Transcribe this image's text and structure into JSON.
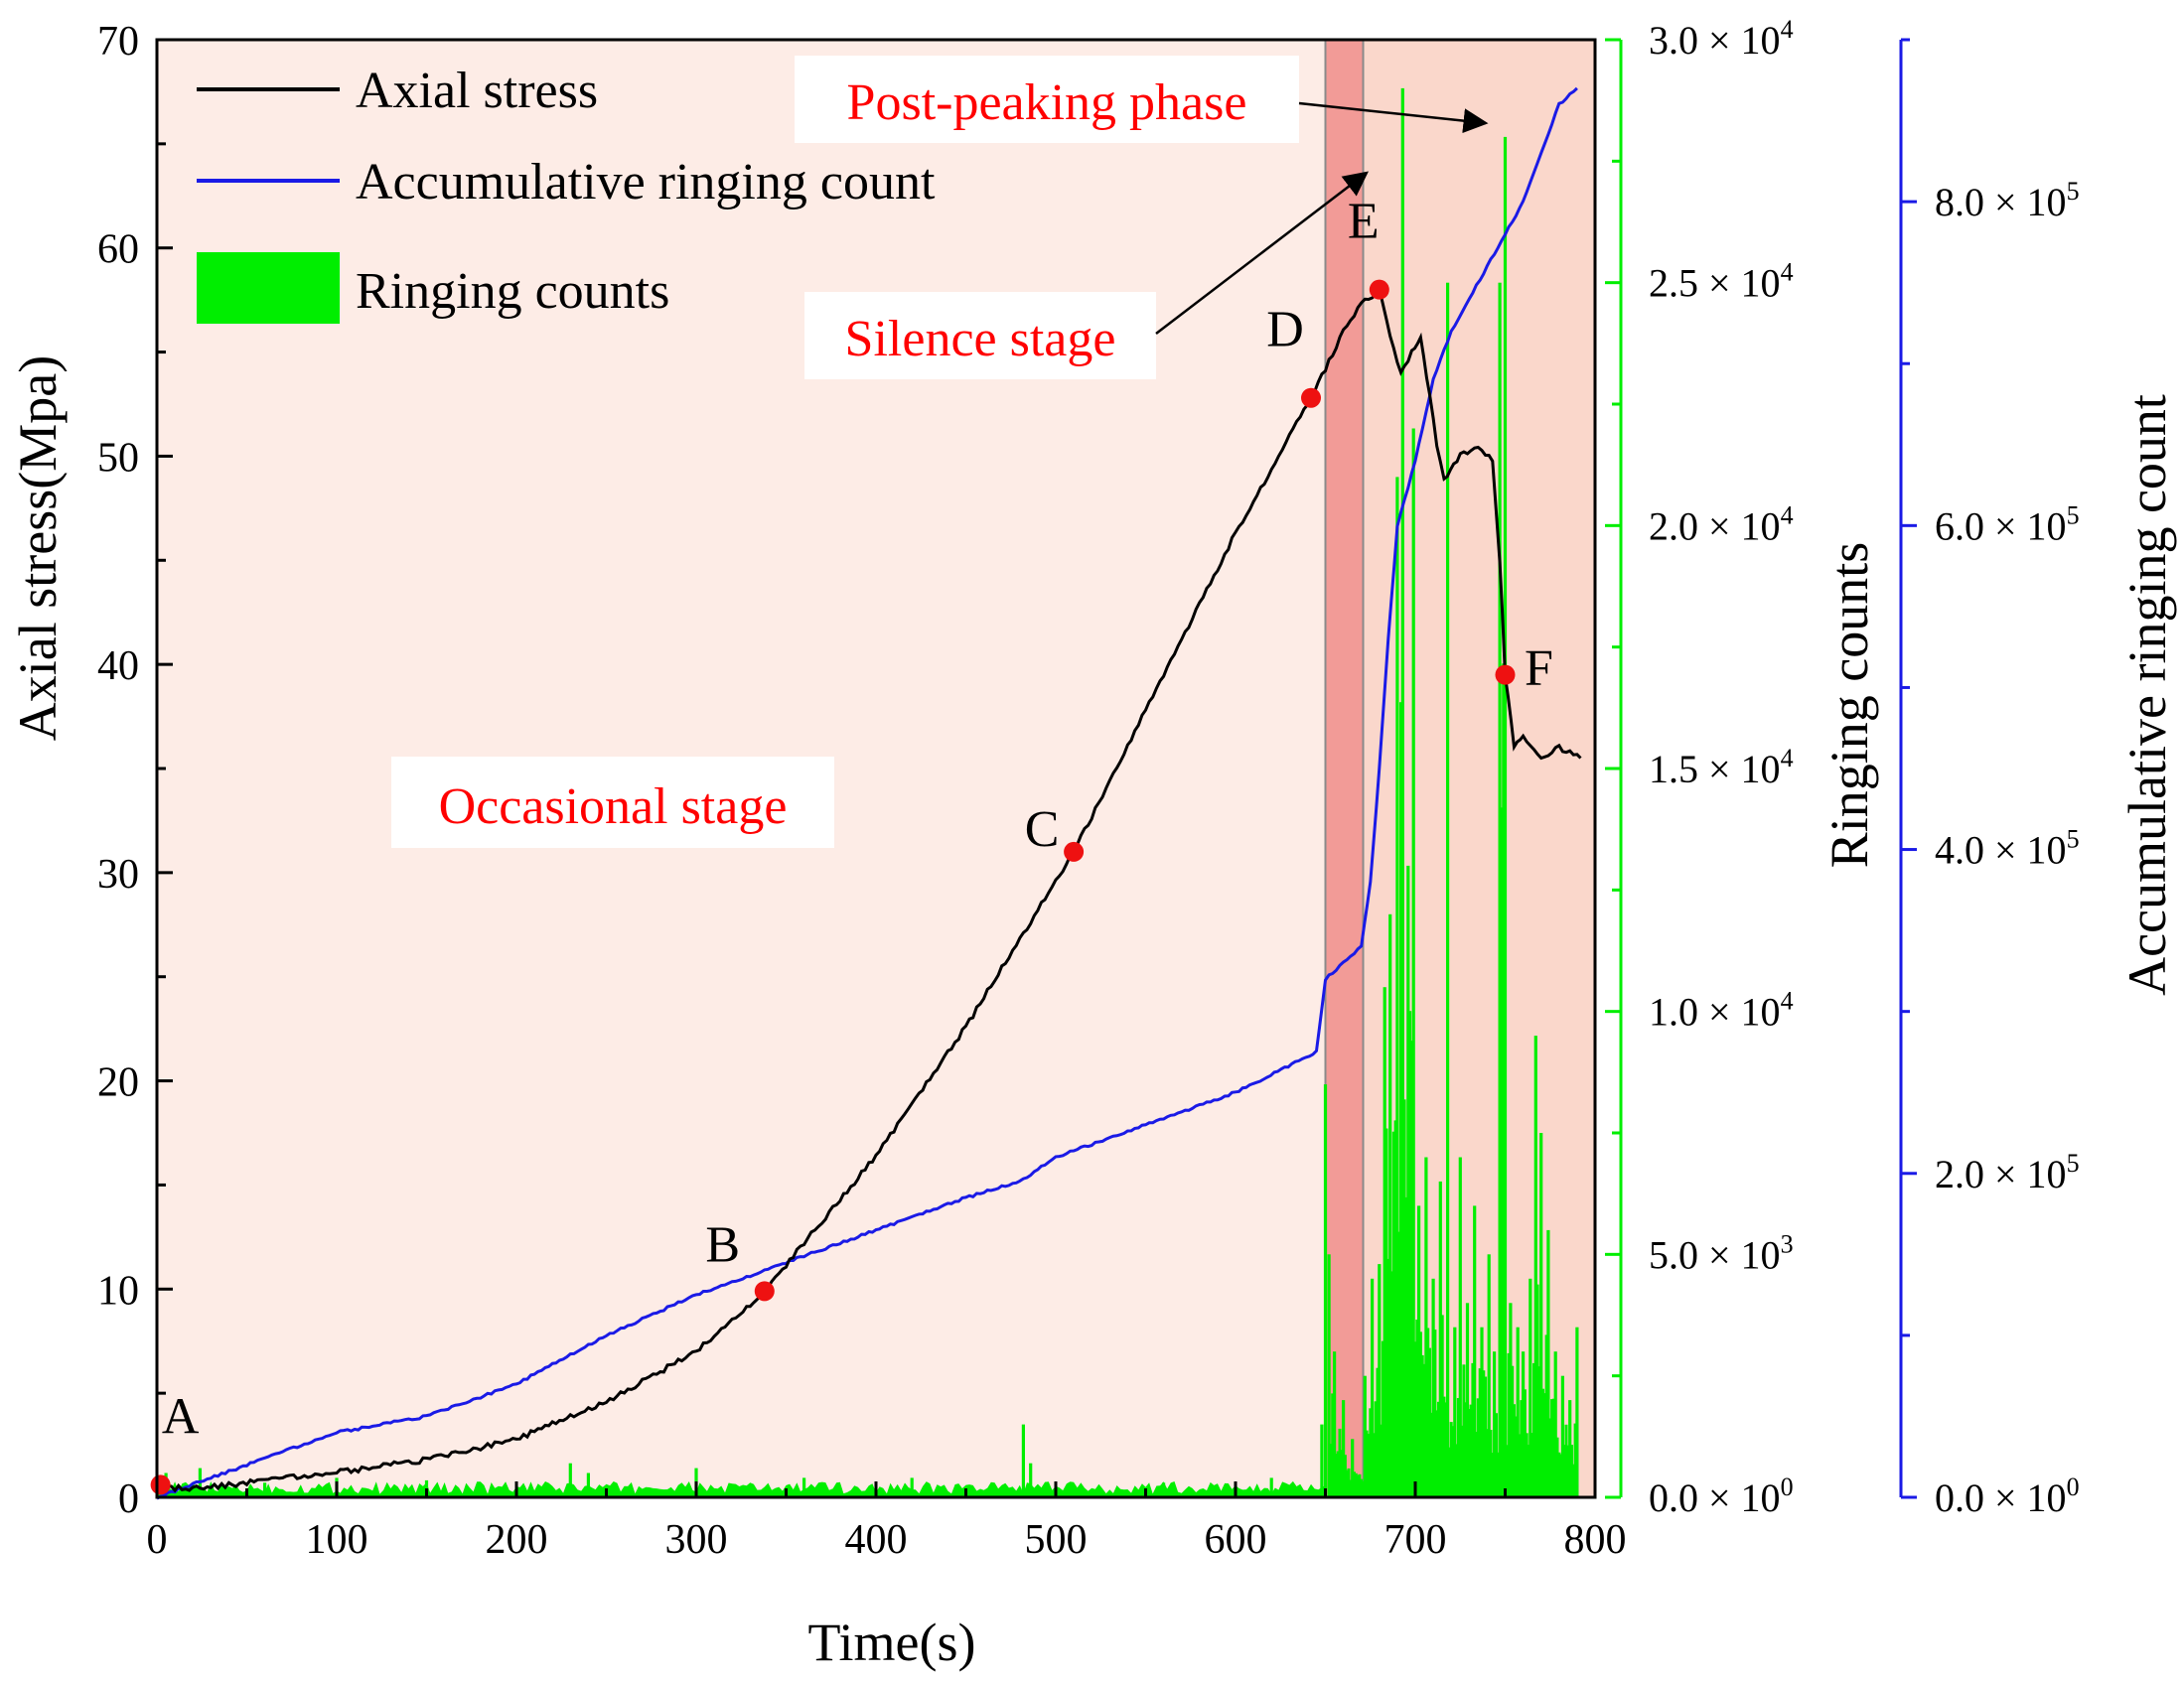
{
  "colors": {
    "stress": "#000000",
    "accumulative": "#1a1ae6",
    "ringing": "#00ee00",
    "stage_bg": "#fdece6",
    "silence_band": "#f29b97",
    "post_band": "#fad7cb",
    "label_red": "#ff0000",
    "point_red": "#ee1111"
  },
  "chart_data": {
    "type": "line",
    "title": "",
    "xlabel": "Time(s)",
    "ylabel_left": "Axial stress(Mpa)",
    "ylabel_right1": "Ringing counts",
    "ylabel_right2": "Accumulative ringing count",
    "xlim": [
      0,
      800
    ],
    "ylim_left": [
      0,
      70
    ],
    "ylim_right1": [
      0,
      30000
    ],
    "ylim_right2": [
      0,
      900000
    ],
    "x_ticks": [
      0,
      100,
      200,
      300,
      400,
      500,
      600,
      700,
      800
    ],
    "x_tick_labels": [
      "0",
      "100",
      "200",
      "300",
      "400",
      "500",
      "600",
      "700",
      "800"
    ],
    "y_left_ticks": [
      0,
      10,
      20,
      30,
      40,
      50,
      60,
      70
    ],
    "y_left_tick_labels": [
      "0",
      "10",
      "20",
      "30",
      "40",
      "50",
      "60",
      "70"
    ],
    "y_right1_ticks": [
      {
        "value": 0,
        "mant": "0.0 × 10",
        "exp": "0"
      },
      {
        "value": 5000,
        "mant": "5.0 × 10",
        "exp": "3"
      },
      {
        "value": 10000,
        "mant": "1.0 × 10",
        "exp": "4"
      },
      {
        "value": 15000,
        "mant": "1.5 × 10",
        "exp": "4"
      },
      {
        "value": 20000,
        "mant": "2.0 × 10",
        "exp": "4"
      },
      {
        "value": 25000,
        "mant": "2.5 × 10",
        "exp": "4"
      },
      {
        "value": 30000,
        "mant": "3.0 × 10",
        "exp": "4"
      }
    ],
    "y_right2_ticks": [
      {
        "value": 0,
        "mant": "0.0 × 10",
        "exp": "0"
      },
      {
        "value": 200000,
        "mant": "2.0 × 10",
        "exp": "5"
      },
      {
        "value": 400000,
        "mant": "4.0 × 10",
        "exp": "5"
      },
      {
        "value": 600000,
        "mant": "6.0 × 10",
        "exp": "5"
      },
      {
        "value": 800000,
        "mant": "8.0 × 10",
        "exp": "5"
      }
    ],
    "stages": [
      {
        "name": "Occasional stage",
        "x0": 0,
        "x1": 650
      },
      {
        "name": "Silence stage",
        "x0": 650,
        "x1": 671
      },
      {
        "name": "Post-peaking phase",
        "x0": 671,
        "x1": 800
      }
    ],
    "legend": [
      {
        "label": "Axial stress",
        "kind": "line",
        "series": "stress"
      },
      {
        "label": "Accumulative ringing count",
        "kind": "line",
        "series": "accumulative"
      },
      {
        "label": "Ringing counts",
        "kind": "bar",
        "series": "ringing"
      }
    ],
    "series": [
      {
        "name": "Axial stress",
        "axis": "left",
        "x": [
          0,
          20,
          50,
          100,
          150,
          200,
          250,
          300,
          338,
          400,
          450,
          510,
          560,
          600,
          642,
          650,
          660,
          670,
          680,
          686,
          692,
          698,
          703,
          708,
          712,
          716,
          725,
          735,
          743,
          747,
          750,
          755,
          760,
          770,
          780,
          792
        ],
        "y": [
          0.5,
          0.4,
          0.7,
          1.2,
          1.8,
          2.8,
          4.6,
          7.0,
          9.9,
          16.4,
          22.6,
          31.0,
          39.5,
          46.3,
          52.8,
          54.2,
          56.0,
          57.3,
          58.0,
          55.8,
          54.0,
          55.0,
          55.6,
          53.0,
          50.5,
          48.8,
          50.0,
          50.5,
          49.8,
          45.0,
          39.5,
          36.0,
          36.5,
          35.5,
          36.0,
          35.5
        ]
      },
      {
        "name": "Accumulative ringing count",
        "axis": "right2",
        "x": [
          0,
          50,
          100,
          150,
          200,
          250,
          300,
          350,
          400,
          450,
          480,
          500,
          550,
          600,
          645,
          650,
          660,
          670,
          675,
          680,
          685,
          690,
          700,
          710,
          720,
          730,
          740,
          750,
          760,
          770,
          780,
          790
        ],
        "y": [
          0,
          20000,
          40000,
          50000,
          70000,
          100000,
          125000,
          145000,
          165000,
          185000,
          195000,
          210000,
          230000,
          250000,
          275000,
          320000,
          330000,
          340000,
          380000,
          450000,
          530000,
          600000,
          640000,
          690000,
          720000,
          740000,
          760000,
          780000,
          800000,
          830000,
          860000,
          870000
        ]
      }
    ],
    "ringing_counts": {
      "axis": "right1",
      "baseline_range": [
        0,
        650
      ],
      "baseline_level": 200,
      "spikes": [
        {
          "x": 5,
          "y": 500
        },
        {
          "x": 24,
          "y": 600
        },
        {
          "x": 60,
          "y": 300
        },
        {
          "x": 100,
          "y": 400
        },
        {
          "x": 150,
          "y": 350
        },
        {
          "x": 230,
          "y": 700
        },
        {
          "x": 240,
          "y": 500
        },
        {
          "x": 300,
          "y": 600
        },
        {
          "x": 360,
          "y": 400
        },
        {
          "x": 420,
          "y": 400
        },
        {
          "x": 482,
          "y": 1500
        },
        {
          "x": 486,
          "y": 700
        },
        {
          "x": 560,
          "y": 300
        },
        {
          "x": 620,
          "y": 400
        },
        {
          "x": 648,
          "y": 1500
        },
        {
          "x": 650,
          "y": 8500
        },
        {
          "x": 652,
          "y": 5000
        },
        {
          "x": 655,
          "y": 3000
        },
        {
          "x": 660,
          "y": 2000
        },
        {
          "x": 665,
          "y": 1200
        },
        {
          "x": 672,
          "y": 2500
        },
        {
          "x": 676,
          "y": 4500
        },
        {
          "x": 680,
          "y": 4800
        },
        {
          "x": 683,
          "y": 10500
        },
        {
          "x": 686,
          "y": 12000
        },
        {
          "x": 690,
          "y": 21000
        },
        {
          "x": 693,
          "y": 29000
        },
        {
          "x": 696,
          "y": 13000
        },
        {
          "x": 699,
          "y": 22000
        },
        {
          "x": 702,
          "y": 6000
        },
        {
          "x": 706,
          "y": 7000
        },
        {
          "x": 710,
          "y": 4500
        },
        {
          "x": 714,
          "y": 6500
        },
        {
          "x": 718,
          "y": 25000
        },
        {
          "x": 722,
          "y": 3500
        },
        {
          "x": 725,
          "y": 7000
        },
        {
          "x": 729,
          "y": 4000
        },
        {
          "x": 733,
          "y": 6000
        },
        {
          "x": 737,
          "y": 3500
        },
        {
          "x": 741,
          "y": 5000
        },
        {
          "x": 744,
          "y": 3000
        },
        {
          "x": 747,
          "y": 25000
        },
        {
          "x": 750,
          "y": 28000
        },
        {
          "x": 753,
          "y": 4000
        },
        {
          "x": 757,
          "y": 3500
        },
        {
          "x": 760,
          "y": 3000
        },
        {
          "x": 764,
          "y": 4500
        },
        {
          "x": 767,
          "y": 9500
        },
        {
          "x": 770,
          "y": 7500
        },
        {
          "x": 774,
          "y": 5500
        },
        {
          "x": 778,
          "y": 3000
        },
        {
          "x": 782,
          "y": 2500
        },
        {
          "x": 786,
          "y": 2000
        },
        {
          "x": 790,
          "y": 3500
        }
      ]
    },
    "points": [
      {
        "label": "A",
        "x": 2,
        "y": 0.6
      },
      {
        "label": "B",
        "x": 338,
        "y": 9.9
      },
      {
        "label": "C",
        "x": 510,
        "y": 31.0
      },
      {
        "label": "D",
        "x": 642,
        "y": 52.8
      },
      {
        "label": "E",
        "x": 680,
        "y": 58.0
      },
      {
        "label": "F",
        "x": 750,
        "y": 39.5
      }
    ],
    "annotations": [
      {
        "text": "Occasional stage"
      },
      {
        "text": "Silence stage"
      },
      {
        "text": "Post-peaking phase"
      }
    ]
  }
}
